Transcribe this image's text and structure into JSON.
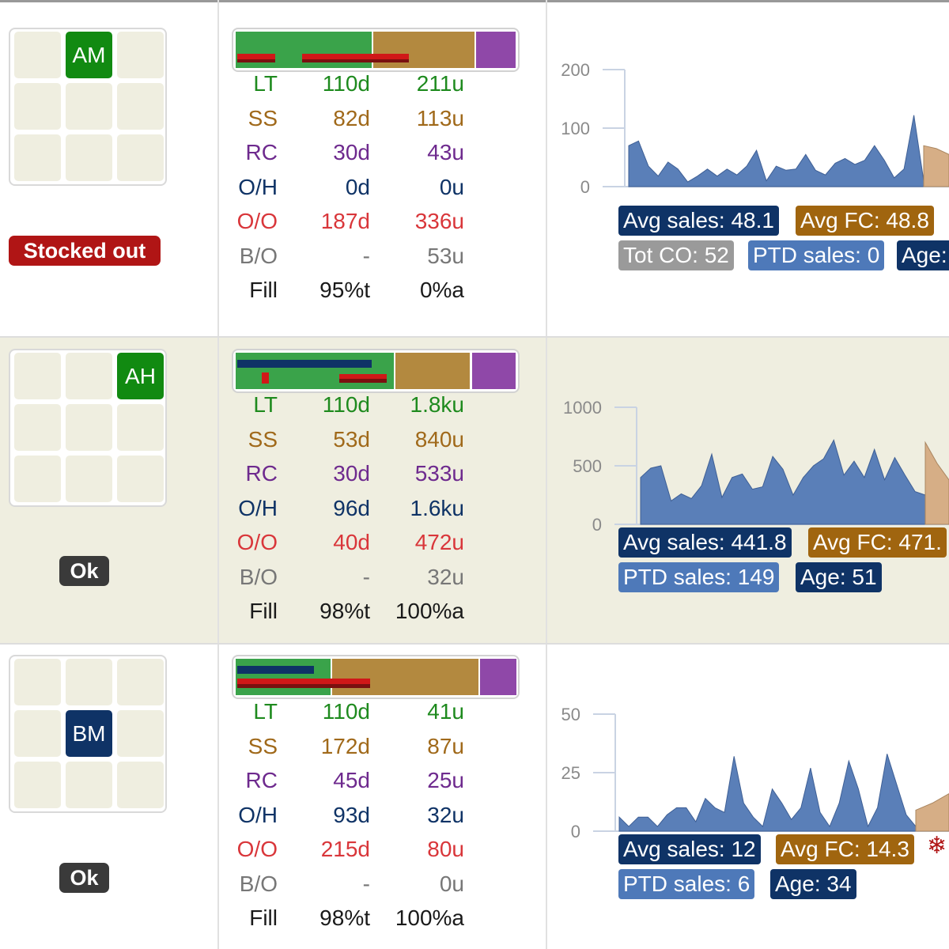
{
  "colors": {
    "green": "#1e8a1e",
    "brown": "#a0691a",
    "purple": "#6e2a8e",
    "navy": "#0f3366",
    "red": "#d9363a",
    "gray": "#777777",
    "black": "#1a1a1a",
    "bar_green": "#3aa34a",
    "bar_brown": "#b3893f",
    "bar_purple": "#8f48a8",
    "sales_blue": "#5a7fb8",
    "fc_tan": "#d6ae86"
  },
  "rows": [
    {
      "grid_label": "AM",
      "grid_label_color": "#118a11",
      "status": {
        "label": "Stocked out",
        "color": "#b01515"
      },
      "metrics": [
        {
          "label": "LT",
          "days": "110d",
          "units": "211u"
        },
        {
          "label": "SS",
          "days": "82d",
          "units": "113u"
        },
        {
          "label": "RC",
          "days": "30d",
          "units": "43u"
        },
        {
          "label": "O/H",
          "days": "0d",
          "units": "0u"
        },
        {
          "label": "O/O",
          "days": "187d",
          "units": "336u"
        },
        {
          "label": "B/O",
          "days": "-",
          "units": "53u"
        },
        {
          "label": "Fill",
          "days": "95%t",
          "units": "0%a"
        }
      ],
      "chart_data": {
        "type": "area",
        "yticks": [
          "200",
          "100",
          "0"
        ],
        "ylim": [
          0,
          200
        ],
        "sales": [
          70,
          78,
          35,
          18,
          42,
          30,
          8,
          18,
          30,
          18,
          30,
          20,
          35,
          62,
          10,
          35,
          28,
          30,
          55,
          28,
          20,
          40,
          48,
          38,
          45,
          70,
          45,
          15,
          30,
          122,
          10
        ],
        "forecast": [
          70,
          65,
          55
        ]
      },
      "badges": [
        {
          "text": "Avg sales: 48.1",
          "color": "navy"
        },
        {
          "text": "Avg FC: 48.8",
          "color": "brown"
        },
        {
          "text": "Tot CO: 52",
          "color": "gray"
        },
        {
          "text": "PTD sales: 0",
          "color": "blue"
        },
        {
          "text": "Age:",
          "color": "navy"
        }
      ]
    },
    {
      "grid_label": "AH",
      "grid_label_color": "#118a11",
      "status": {
        "label": "Ok",
        "color": "#3a3a3a"
      },
      "metrics": [
        {
          "label": "LT",
          "days": "110d",
          "units": "1.8ku"
        },
        {
          "label": "SS",
          "days": "53d",
          "units": "840u"
        },
        {
          "label": "RC",
          "days": "30d",
          "units": "533u"
        },
        {
          "label": "O/H",
          "days": "96d",
          "units": "1.6ku"
        },
        {
          "label": "O/O",
          "days": "40d",
          "units": "472u"
        },
        {
          "label": "B/O",
          "days": "-",
          "units": "32u"
        },
        {
          "label": "Fill",
          "days": "98%t",
          "units": "100%a"
        }
      ],
      "chart_data": {
        "type": "area",
        "yticks": [
          "1000",
          "500",
          "0"
        ],
        "ylim": [
          0,
          1000
        ],
        "sales": [
          400,
          480,
          500,
          200,
          260,
          220,
          330,
          600,
          230,
          400,
          430,
          300,
          320,
          580,
          470,
          250,
          400,
          500,
          560,
          720,
          420,
          540,
          400,
          640,
          380,
          570,
          420,
          280,
          250
        ],
        "forecast": [
          700,
          520,
          380
        ]
      },
      "badges": [
        {
          "text": "Avg sales: 441.8",
          "color": "navy"
        },
        {
          "text": "Avg FC: 471.",
          "color": "brown"
        },
        {
          "text": "PTD sales: 149",
          "color": "blue"
        },
        {
          "text": "Age: 51",
          "color": "navy"
        }
      ]
    },
    {
      "grid_label": "BM",
      "grid_label_color": "#0f3366",
      "status": {
        "label": "Ok",
        "color": "#3a3a3a"
      },
      "metrics": [
        {
          "label": "LT",
          "days": "110d",
          "units": "41u"
        },
        {
          "label": "SS",
          "days": "172d",
          "units": "87u"
        },
        {
          "label": "RC",
          "days": "45d",
          "units": "25u"
        },
        {
          "label": "O/H",
          "days": "93d",
          "units": "32u"
        },
        {
          "label": "O/O",
          "days": "215d",
          "units": "80u"
        },
        {
          "label": "B/O",
          "days": "-",
          "units": "0u"
        },
        {
          "label": "Fill",
          "days": "98%t",
          "units": "100%a"
        }
      ],
      "chart_data": {
        "type": "area",
        "yticks": [
          "50",
          "25",
          "0"
        ],
        "ylim": [
          0,
          50
        ],
        "sales": [
          6,
          2,
          6,
          6,
          2,
          7,
          10,
          10,
          4,
          14,
          10,
          8,
          32,
          12,
          6,
          2,
          18,
          12,
          5,
          10,
          27,
          8,
          2,
          12,
          30,
          18,
          2,
          10,
          33,
          20,
          7,
          2
        ],
        "forecast": [
          9,
          12,
          16
        ]
      },
      "badges": [
        {
          "text": "Avg sales: 12",
          "color": "navy"
        },
        {
          "text": "Avg FC: 14.3",
          "color": "brown"
        },
        {
          "text": "PTD sales: 6",
          "color": "blue"
        },
        {
          "text": "Age: 34",
          "color": "navy"
        }
      ],
      "flag_icon": "snowflake-icon"
    }
  ]
}
